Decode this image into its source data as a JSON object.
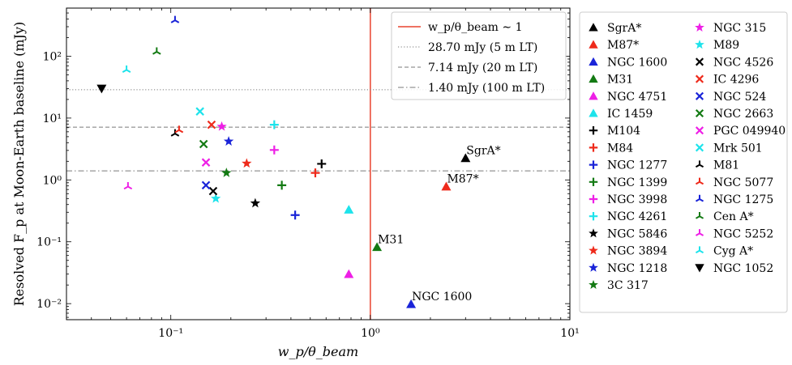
{
  "chart_data": {
    "type": "scatter",
    "xlabel": "w_p/θ_beam",
    "ylabel": "Resolved F_p at Moon-Earth baseline (mJy)",
    "xscale": "log",
    "yscale": "log",
    "xlim": [
      0.03,
      10
    ],
    "ylim": [
      0.0055,
      600
    ],
    "x_ticks": [
      {
        "v": 0.1,
        "label": "10⁻¹"
      },
      {
        "v": 1,
        "label": "10⁰"
      },
      {
        "v": 10,
        "label": "10¹"
      }
    ],
    "y_ticks": [
      {
        "v": 0.01,
        "label": "10⁻²"
      },
      {
        "v": 0.1,
        "label": "10⁻¹"
      },
      {
        "v": 1,
        "label": "10⁰"
      },
      {
        "v": 10,
        "label": "10¹"
      },
      {
        "v": 100,
        "label": "10²"
      }
    ],
    "reference_lines": [
      {
        "orient": "v",
        "value": 1,
        "style": "solid",
        "color": "#e8432e",
        "label": "w_p/θ_beam ∼ 1"
      },
      {
        "orient": "h",
        "value": 28.7,
        "style": "dotted",
        "color": "#7a7a7a",
        "label": "28.70 mJy (5 m LT)"
      },
      {
        "orient": "h",
        "value": 7.14,
        "style": "dashed",
        "color": "#7a7a7a",
        "label": "7.14 mJy (20 m LT)"
      },
      {
        "orient": "h",
        "value": 1.4,
        "style": "dashdot",
        "color": "#7a7a7a",
        "label": "1.40 mJy (100 m LT)"
      }
    ],
    "series": [
      {
        "name": "SgrA*",
        "marker": "triangle",
        "color": "#000000",
        "x": 3.0,
        "y": 2.25,
        "annotation": "SgrA*"
      },
      {
        "name": "M87*",
        "marker": "triangle",
        "color": "#ee2a1b",
        "x": 2.4,
        "y": 0.78,
        "annotation": "M87*"
      },
      {
        "name": "NGC 1600",
        "marker": "triangle",
        "color": "#1a24d8",
        "x": 1.6,
        "y": 0.0098,
        "annotation": "NGC 1600"
      },
      {
        "name": "M31",
        "marker": "triangle",
        "color": "#137a13",
        "x": 1.08,
        "y": 0.082,
        "annotation": "M31"
      },
      {
        "name": "NGC 4751",
        "marker": "triangle",
        "color": "#ee1fe6",
        "x": 0.78,
        "y": 0.03
      },
      {
        "name": "IC 1459",
        "marker": "triangle",
        "color": "#1de3eb",
        "x": 0.78,
        "y": 0.33
      },
      {
        "name": "M104",
        "marker": "plus",
        "color": "#000000",
        "x": 0.57,
        "y": 1.82
      },
      {
        "name": "M84",
        "marker": "plus",
        "color": "#ee2a1b",
        "x": 0.53,
        "y": 1.3
      },
      {
        "name": "NGC 1277",
        "marker": "plus",
        "color": "#1a24d8",
        "x": 0.42,
        "y": 0.27
      },
      {
        "name": "NGC 1399",
        "marker": "plus",
        "color": "#137a13",
        "x": 0.36,
        "y": 0.82
      },
      {
        "name": "NGC 3998",
        "marker": "plus",
        "color": "#ee1fe6",
        "x": 0.33,
        "y": 3.05
      },
      {
        "name": "NGC 4261",
        "marker": "plus",
        "color": "#1de3eb",
        "x": 0.33,
        "y": 7.8
      },
      {
        "name": "NGC 5846",
        "marker": "star",
        "color": "#000000",
        "x": 0.265,
        "y": 0.42
      },
      {
        "name": "NGC 3894",
        "marker": "star",
        "color": "#ee2a1b",
        "x": 0.24,
        "y": 1.85
      },
      {
        "name": "NGC 1218",
        "marker": "star",
        "color": "#1a24d8",
        "x": 0.195,
        "y": 4.2
      },
      {
        "name": "3C 317",
        "marker": "star",
        "color": "#137a13",
        "x": 0.19,
        "y": 1.3
      },
      {
        "name": "NGC 315",
        "marker": "star",
        "color": "#ee1fe6",
        "x": 0.18,
        "y": 7.3
      },
      {
        "name": "M89",
        "marker": "star",
        "color": "#1de3eb",
        "x": 0.168,
        "y": 0.5
      },
      {
        "name": "NGC 4526",
        "marker": "x",
        "color": "#000000",
        "x": 0.163,
        "y": 0.66
      },
      {
        "name": "IC 4296",
        "marker": "x",
        "color": "#ee2a1b",
        "x": 0.16,
        "y": 7.8
      },
      {
        "name": "NGC 524",
        "marker": "x",
        "color": "#1a24d8",
        "x": 0.15,
        "y": 0.82
      },
      {
        "name": "NGC 2663",
        "marker": "x",
        "color": "#137a13",
        "x": 0.146,
        "y": 3.8
      },
      {
        "name": "PGC 049940",
        "marker": "x",
        "color": "#ee1fe6",
        "x": 0.15,
        "y": 1.92
      },
      {
        "name": "Mrk 501",
        "marker": "x",
        "color": "#1de3eb",
        "x": 0.14,
        "y": 12.8
      },
      {
        "name": "M81",
        "marker": "tri",
        "color": "#000000",
        "x": 0.105,
        "y": 5.6
      },
      {
        "name": "NGC 5077",
        "marker": "tri",
        "color": "#ee2a1b",
        "x": 0.11,
        "y": 6.4
      },
      {
        "name": "NGC 1275",
        "marker": "tri",
        "color": "#1a24d8",
        "x": 0.105,
        "y": 380
      },
      {
        "name": "Cen A*",
        "marker": "tri",
        "color": "#137a13",
        "x": 0.085,
        "y": 118
      },
      {
        "name": "NGC 5252",
        "marker": "tri",
        "color": "#ee1fe6",
        "x": 0.061,
        "y": 0.78
      },
      {
        "name": "Cyg A*",
        "marker": "tri",
        "color": "#1de3eb",
        "x": 0.06,
        "y": 60
      },
      {
        "name": "NGC 1052",
        "marker": "triangle_down",
        "color": "#000000",
        "x": 0.045,
        "y": 30
      }
    ]
  }
}
